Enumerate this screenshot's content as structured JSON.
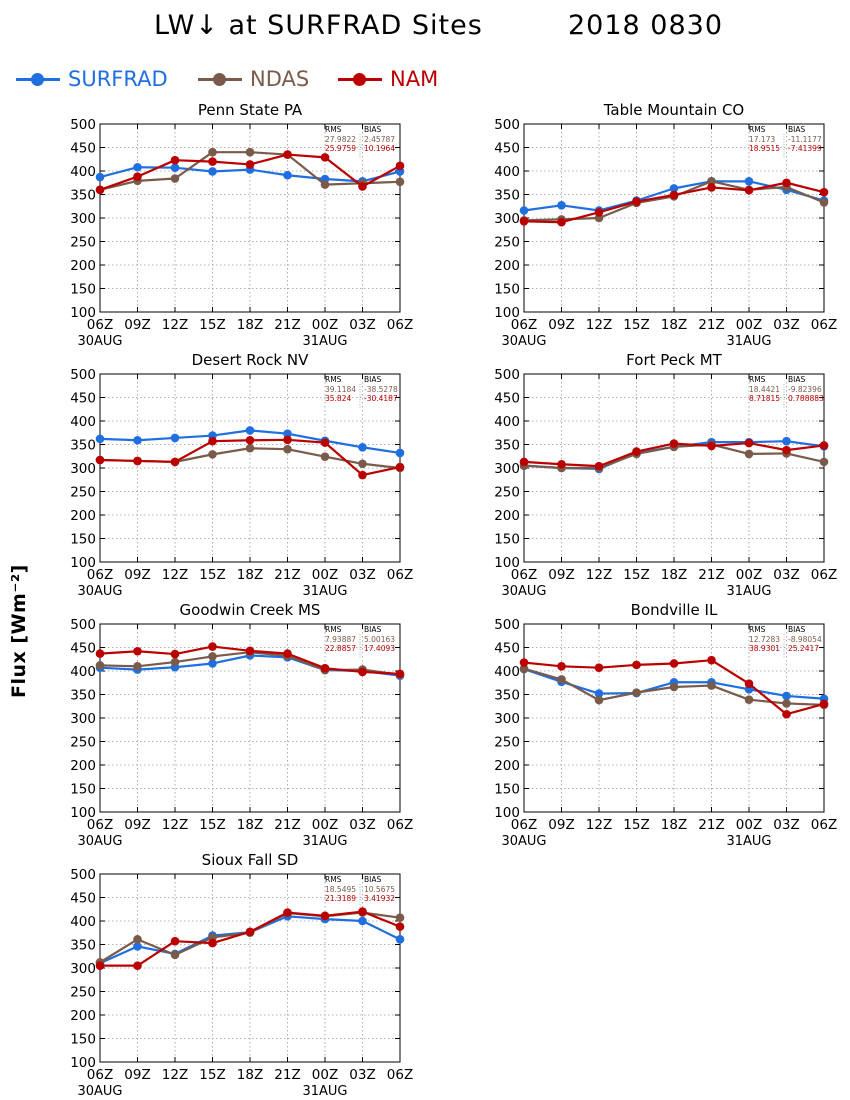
{
  "page": {
    "title_left": "LW↓ at SURFRAD Sites",
    "title_right": "2018 0830",
    "ylabel": "Flux [Wm⁻²]"
  },
  "legend": [
    {
      "label": "SURFRAD",
      "color": "#1f6fe0"
    },
    {
      "label": "NDAS",
      "color": "#7a5a4a"
    },
    {
      "label": "NAM",
      "color": "#bb0000"
    }
  ],
  "stats_header": {
    "rms": "RMS",
    "bias": "BIAS"
  },
  "chart_data": [
    {
      "type": "line",
      "title": "Penn State PA",
      "x": [
        "06Z",
        "09Z",
        "12Z",
        "15Z",
        "18Z",
        "21Z",
        "00Z",
        "03Z",
        "06Z"
      ],
      "date_labels": [
        "30AUG",
        "31AUG"
      ],
      "ylim": [
        100,
        500
      ],
      "yticks": [
        100,
        150,
        200,
        250,
        300,
        350,
        400,
        450,
        500
      ],
      "grid": true,
      "series": [
        {
          "name": "SURFRAD",
          "values": [
            387,
            408,
            407,
            399,
            403,
            391,
            383,
            378,
            399
          ]
        },
        {
          "name": "NDAS",
          "values": [
            360,
            379,
            384,
            440,
            440,
            435,
            371,
            374,
            377
          ]
        },
        {
          "name": "NAM",
          "values": [
            360,
            388,
            423,
            420,
            414,
            435,
            429,
            367,
            411
          ]
        }
      ],
      "stats": [
        {
          "rms": "27.9822",
          "bias": "2.45787"
        },
        {
          "rms": "25.9759",
          "bias": "10.1964"
        }
      ]
    },
    {
      "type": "line",
      "title": "Table Mountain CO",
      "x": [
        "06Z",
        "09Z",
        "12Z",
        "15Z",
        "18Z",
        "21Z",
        "00Z",
        "03Z",
        "06Z"
      ],
      "date_labels": [
        "30AUG",
        "31AUG"
      ],
      "ylim": [
        100,
        500
      ],
      "yticks": [
        100,
        150,
        200,
        250,
        300,
        350,
        400,
        450,
        500
      ],
      "grid": true,
      "series": [
        {
          "name": "SURFRAD",
          "values": [
            316,
            327,
            316,
            337,
            363,
            378,
            378,
            360,
            337
          ]
        },
        {
          "name": "NDAS",
          "values": [
            295,
            297,
            300,
            332,
            346,
            378,
            360,
            366,
            333
          ]
        },
        {
          "name": "NAM",
          "values": [
            293,
            291,
            312,
            335,
            349,
            365,
            359,
            375,
            355
          ]
        }
      ],
      "stats": [
        {
          "rms": "17.173",
          "bias": "-11.1177"
        },
        {
          "rms": "18.9515",
          "bias": "-7.41399"
        }
      ]
    },
    {
      "type": "line",
      "title": "Desert Rock NV",
      "x": [
        "06Z",
        "09Z",
        "12Z",
        "15Z",
        "18Z",
        "21Z",
        "00Z",
        "03Z",
        "06Z"
      ],
      "date_labels": [
        "30AUG",
        "31AUG"
      ],
      "ylim": [
        100,
        500
      ],
      "yticks": [
        100,
        150,
        200,
        250,
        300,
        350,
        400,
        450,
        500
      ],
      "grid": true,
      "series": [
        {
          "name": "SURFRAD",
          "values": [
            362,
            359,
            364,
            369,
            380,
            373,
            358,
            344,
            332
          ]
        },
        {
          "name": "NDAS",
          "values": [
            317,
            315,
            313,
            329,
            342,
            340,
            324,
            309,
            300
          ]
        },
        {
          "name": "NAM",
          "values": [
            317,
            315,
            313,
            357,
            359,
            360,
            354,
            285,
            302
          ]
        }
      ],
      "stats": [
        {
          "rms": "39.1184",
          "bias": "-38.5278"
        },
        {
          "rms": "35.824",
          "bias": "-30.4187"
        }
      ]
    },
    {
      "type": "line",
      "title": "Fort Peck MT",
      "x": [
        "06Z",
        "09Z",
        "12Z",
        "15Z",
        "18Z",
        "21Z",
        "00Z",
        "03Z",
        "06Z"
      ],
      "date_labels": [
        "30AUG",
        "31AUG"
      ],
      "ylim": [
        100,
        500
      ],
      "yticks": [
        100,
        150,
        200,
        250,
        300,
        350,
        400,
        450,
        500
      ],
      "grid": true,
      "series": [
        {
          "name": "SURFRAD",
          "values": [
            305,
            300,
            298,
            332,
            345,
            355,
            355,
            357,
            346
          ]
        },
        {
          "name": "NDAS",
          "values": [
            305,
            300,
            300,
            330,
            345,
            350,
            330,
            331,
            313
          ]
        },
        {
          "name": "NAM",
          "values": [
            313,
            308,
            304,
            335,
            352,
            347,
            353,
            338,
            348
          ]
        }
      ],
      "stats": [
        {
          "rms": "18.4421",
          "bias": "-9.82396"
        },
        {
          "rms": "8.71815",
          "bias": "0.788883"
        }
      ]
    },
    {
      "type": "line",
      "title": "Goodwin Creek MS",
      "x": [
        "06Z",
        "09Z",
        "12Z",
        "15Z",
        "18Z",
        "21Z",
        "00Z",
        "03Z",
        "06Z"
      ],
      "date_labels": [
        "30AUG",
        "31AUG"
      ],
      "ylim": [
        100,
        500
      ],
      "yticks": [
        100,
        150,
        200,
        250,
        300,
        350,
        400,
        450,
        500
      ],
      "grid": true,
      "series": [
        {
          "name": "SURFRAD",
          "values": [
            407,
            403,
            408,
            416,
            433,
            429,
            402,
            400,
            390
          ]
        },
        {
          "name": "NDAS",
          "values": [
            412,
            410,
            419,
            431,
            440,
            432,
            402,
            403,
            392
          ]
        },
        {
          "name": "NAM",
          "values": [
            437,
            442,
            436,
            452,
            443,
            437,
            406,
            398,
            394
          ]
        }
      ],
      "stats": [
        {
          "rms": "7.93887",
          "bias": "5.00163"
        },
        {
          "rms": "22.8857",
          "bias": "17.4093"
        }
      ]
    },
    {
      "type": "line",
      "title": "Bondville IL",
      "x": [
        "06Z",
        "09Z",
        "12Z",
        "15Z",
        "18Z",
        "21Z",
        "00Z",
        "03Z",
        "06Z"
      ],
      "date_labels": [
        "30AUG",
        "31AUG"
      ],
      "ylim": [
        100,
        500
      ],
      "yticks": [
        100,
        150,
        200,
        250,
        300,
        350,
        400,
        450,
        500
      ],
      "grid": true,
      "series": [
        {
          "name": "SURFRAD",
          "values": [
            404,
            377,
            352,
            353,
            376,
            376,
            361,
            347,
            341
          ]
        },
        {
          "name": "NDAS",
          "values": [
            405,
            382,
            338,
            354,
            366,
            369,
            339,
            331,
            328
          ]
        },
        {
          "name": "NAM",
          "values": [
            418,
            410,
            407,
            413,
            416,
            423,
            373,
            308,
            330
          ]
        }
      ],
      "stats": [
        {
          "rms": "12.7283",
          "bias": "-8.98054"
        },
        {
          "rms": "38.9301",
          "bias": "25.2417"
        }
      ]
    },
    {
      "type": "line",
      "title": "Sioux Fall SD",
      "x": [
        "06Z",
        "09Z",
        "12Z",
        "15Z",
        "18Z",
        "21Z",
        "00Z",
        "03Z",
        "06Z"
      ],
      "date_labels": [
        "30AUG",
        "31AUG"
      ],
      "ylim": [
        100,
        500
      ],
      "yticks": [
        100,
        150,
        200,
        250,
        300,
        350,
        400,
        450,
        500
      ],
      "grid": true,
      "series": [
        {
          "name": "SURFRAD",
          "values": [
            310,
            346,
            330,
            369,
            376,
            410,
            404,
            400,
            361
          ]
        },
        {
          "name": "NDAS",
          "values": [
            312,
            361,
            328,
            365,
            375,
            417,
            410,
            418,
            407
          ]
        },
        {
          "name": "NAM",
          "values": [
            305,
            305,
            357,
            353,
            377,
            418,
            411,
            420,
            388
          ]
        }
      ],
      "stats": [
        {
          "rms": "18.5495",
          "bias": "10.5675"
        },
        {
          "rms": "21.3189",
          "bias": "3.41932"
        }
      ]
    }
  ]
}
